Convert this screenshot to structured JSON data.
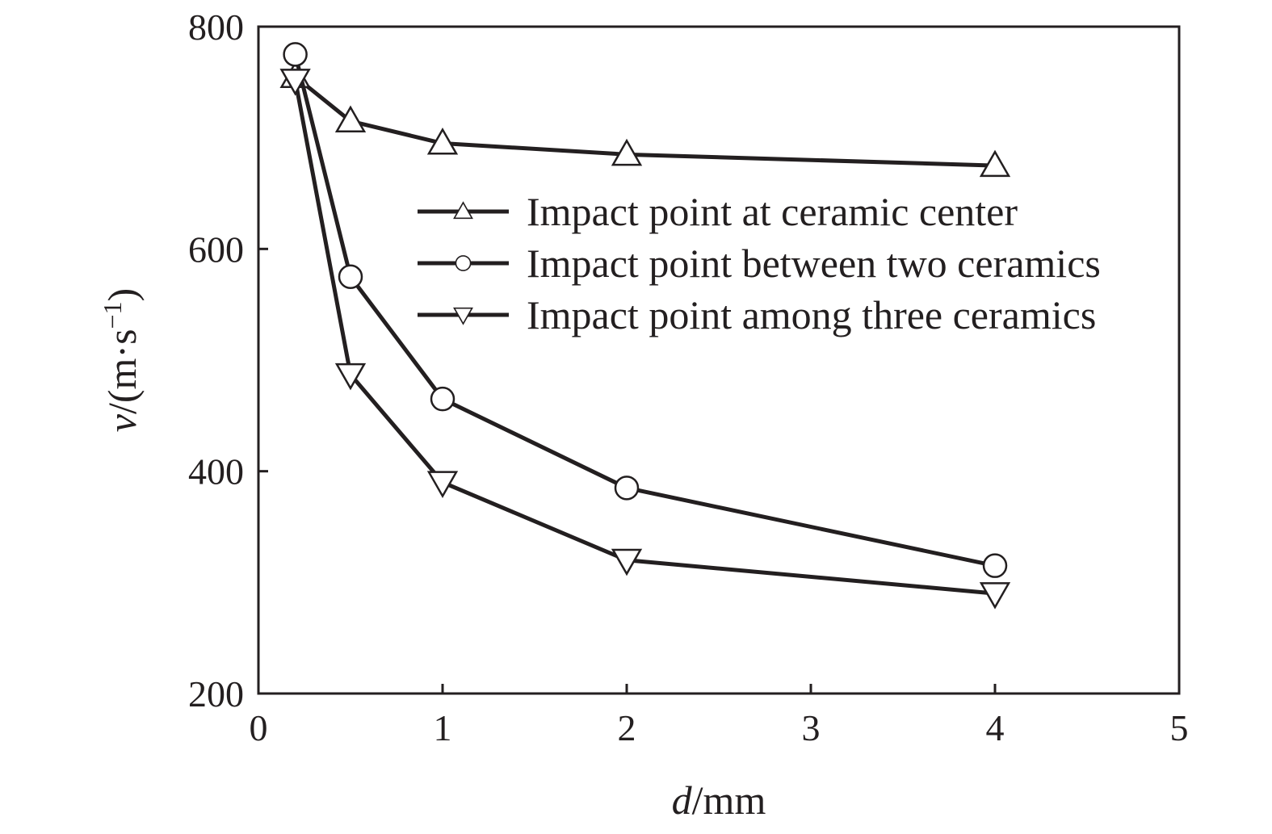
{
  "chart_data": {
    "type": "line",
    "title": "",
    "xlabel": {
      "var": "d",
      "unit": "/mm"
    },
    "ylabel": {
      "var": "v",
      "unit": "/(m·s",
      "sup": "−1",
      "close": ")"
    },
    "xlim": [
      0,
      5
    ],
    "ylim": [
      200,
      800
    ],
    "xticks": [
      "0",
      "1",
      "2",
      "3",
      "4",
      "5"
    ],
    "yticks": [
      "200",
      "400",
      "600",
      "800"
    ],
    "grid": false,
    "legend_position": "upper-right inside",
    "series": [
      {
        "name": "Impact point at ceramic center",
        "marker": "triangle-up",
        "x": [
          0.2,
          0.5,
          1,
          2,
          4
        ],
        "y": [
          755,
          715,
          695,
          685,
          675
        ]
      },
      {
        "name": "Impact point between two ceramics",
        "marker": "circle",
        "x": [
          0.2,
          0.5,
          1,
          2,
          4
        ],
        "y": [
          775,
          575,
          465,
          385,
          315
        ]
      },
      {
        "name": "Impact point among three ceramics",
        "marker": "triangle-down",
        "x": [
          0.2,
          0.5,
          1,
          2,
          4
        ],
        "y": [
          752,
          487,
          390,
          320,
          290
        ]
      }
    ]
  }
}
